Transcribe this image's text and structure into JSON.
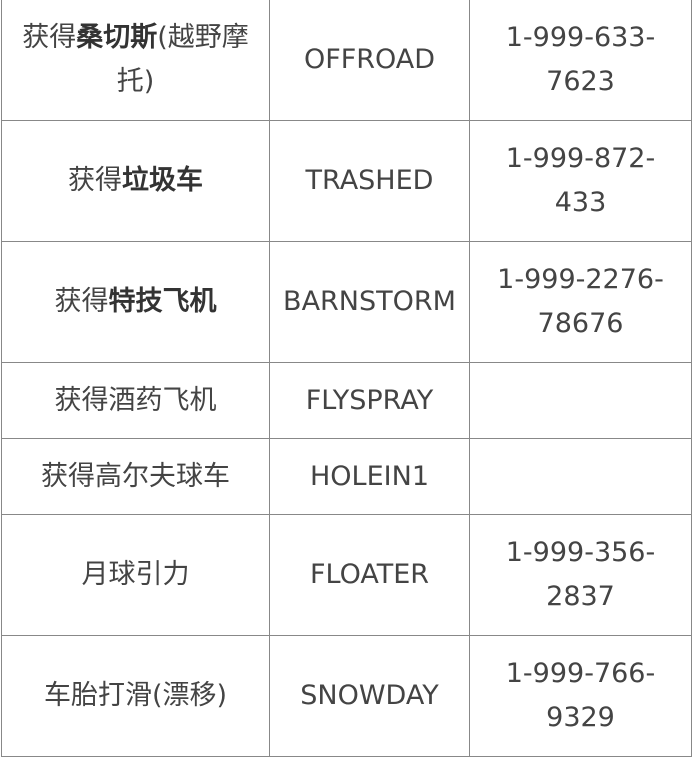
{
  "rows": [
    {
      "prefix": "获得",
      "bold": "桑切斯",
      "suffix": "(越野摩托)",
      "code": "OFFROAD",
      "phone": "1-999-633-7623"
    },
    {
      "prefix": "获得",
      "bold": "垃圾车",
      "suffix": "",
      "code": "TRASHED",
      "phone": "1-999-872-433"
    },
    {
      "prefix": "获得",
      "bold": "特技飞机",
      "suffix": "",
      "code": "BARNSTORM",
      "phone": "1-999-2276-78676"
    },
    {
      "prefix": "获得酒药飞机",
      "bold": "",
      "suffix": "",
      "code": "FLYSPRAY",
      "phone": ""
    },
    {
      "prefix": "获得高尔夫球车",
      "bold": "",
      "suffix": "",
      "code": "HOLEIN1",
      "phone": ""
    },
    {
      "prefix": "月球引力",
      "bold": "",
      "suffix": "",
      "code": "FLOATER",
      "phone": "1-999-356-2837"
    },
    {
      "prefix": "车胎打滑(漂移)",
      "bold": "",
      "suffix": "",
      "code": "SNOWDAY",
      "phone": "1-999-766-9329"
    }
  ]
}
